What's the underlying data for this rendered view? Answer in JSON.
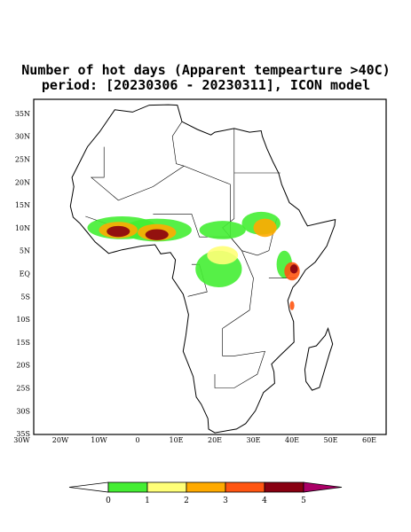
{
  "title": [
    "Number of hot days (Apparent tempearture >40C)",
    "period: [20230306 - 20230311], ICON model"
  ],
  "lat_labels": [
    "35N",
    "30N",
    "25N",
    "20N",
    "15N",
    "10N",
    "5N",
    "EQ",
    "5S",
    "10S",
    "15S",
    "20S",
    "25S",
    "30S",
    "35S"
  ],
  "lon_labels": [
    "30W",
    "20W",
    "10W",
    "0",
    "10E",
    "20E",
    "30E",
    "40E",
    "50E",
    "60E"
  ],
  "colorbar": {
    "levels": [
      0,
      1,
      2,
      3,
      4,
      5
    ],
    "colors": [
      "#ffffff",
      "#44ee33",
      "#ffff77",
      "#ffaa00",
      "#ff5511",
      "#880011",
      "#aa0066"
    ]
  }
}
